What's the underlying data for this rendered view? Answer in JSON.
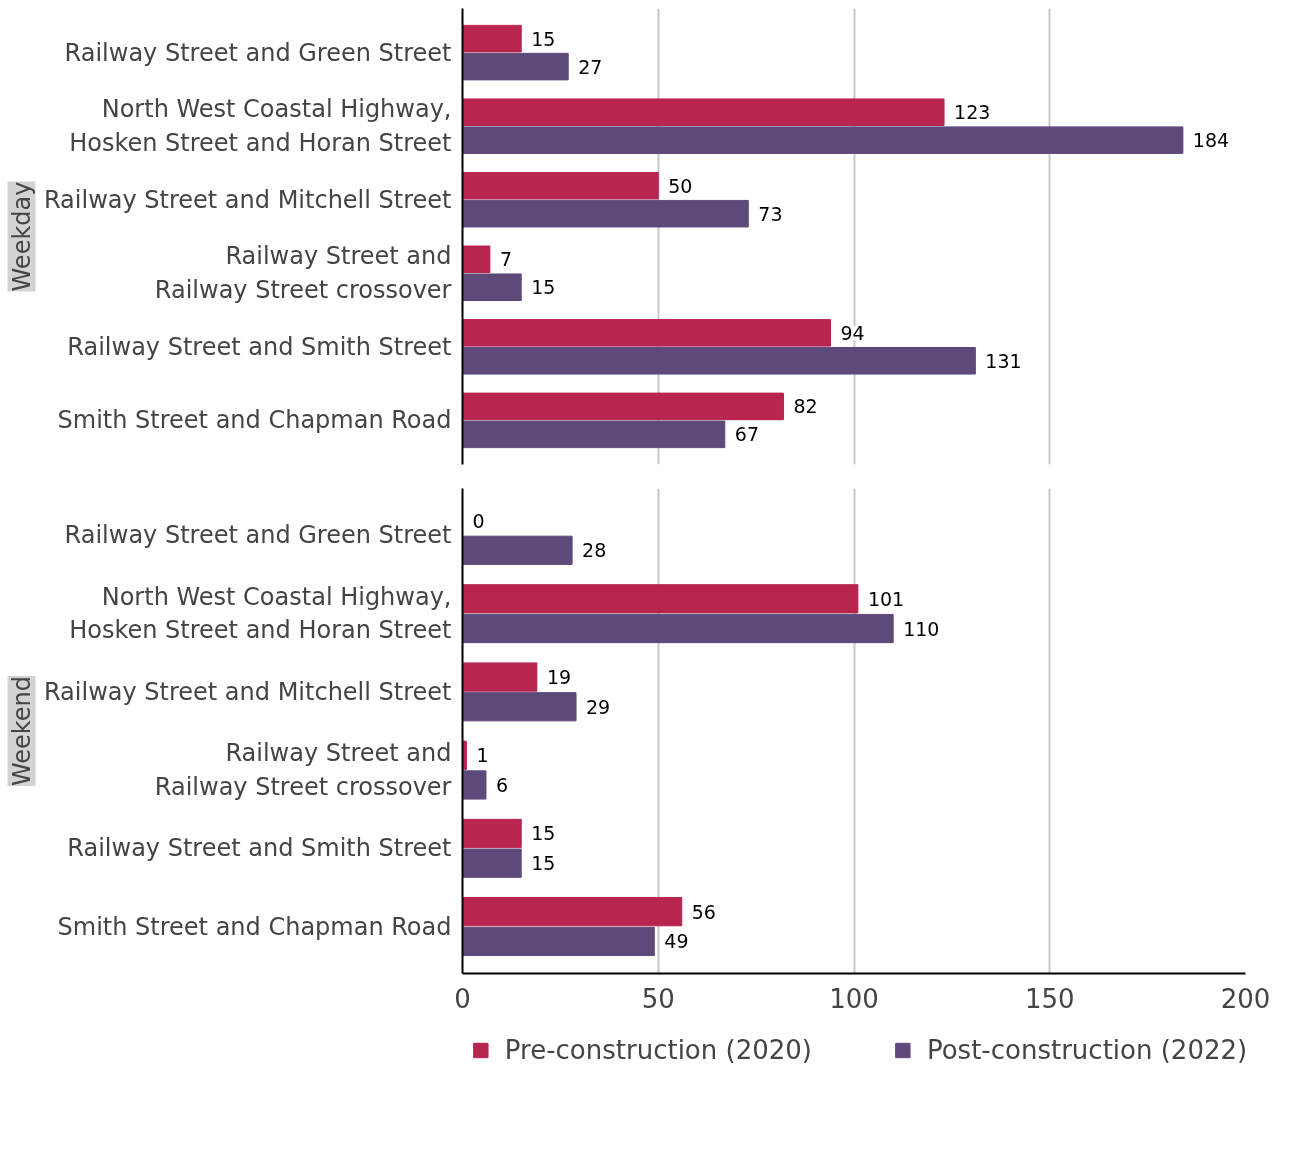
{
  "chart_data": [
    {
      "type": "bar",
      "orientation": "horizontal",
      "title": "Weekday",
      "categories": [
        "Railway Street and Green Street",
        "North West Coastal Highway,\nHosken Street and Horan Street",
        "Railway Street and Mitchell Street",
        "Railway Street and\nRailway Street crossover",
        "Railway Street and Smith Street",
        "Smith Street and Chapman Road"
      ],
      "series": [
        {
          "color": "#b8254f",
          "values": [
            15,
            123,
            50,
            7,
            94,
            82
          ]
        },
        {
          "color": "#5e4a7a",
          "values": [
            27,
            184,
            73,
            15,
            131,
            67
          ]
        }
      ],
      "xlim": [
        0,
        200
      ],
      "xticks": [
        0,
        50,
        100,
        150,
        200
      ],
      "tick_labels": "y",
      "grid": "x",
      "data_labels": true
    },
    {
      "type": "bar",
      "orientation": "horizontal",
      "title": "Weekend",
      "categories": [
        "Railway Street and Green Street",
        "North West Coastal Highway,\nHosken Street and Horan Street",
        "Railway Street and Mitchell Street",
        "Railway Street and\nRailway Street crossover",
        "Railway Street and Smith Street",
        "Smith Street and Chapman Road"
      ],
      "series": [
        {
          "name": "Pre-construction (2020)",
          "color": "#b8254f",
          "values": [
            0,
            101,
            19,
            1,
            15,
            56
          ]
        },
        {
          "name": "Post-construction (2022)",
          "color": "#5e4a7a",
          "values": [
            28,
            110,
            29,
            6,
            15,
            49
          ]
        }
      ],
      "xlim": [
        0,
        200
      ],
      "xticks": [
        0,
        50,
        100,
        150,
        200
      ],
      "grid": "x",
      "data_labels": true,
      "legend": "bottom"
    }
  ]
}
